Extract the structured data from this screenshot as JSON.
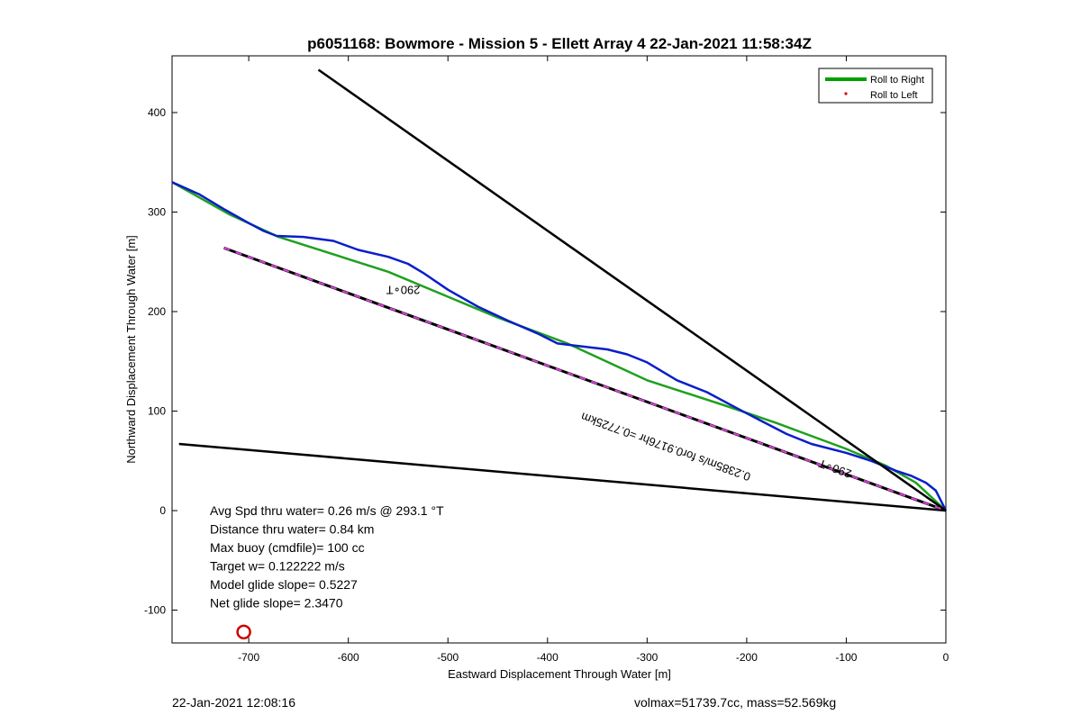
{
  "chart_data": {
    "type": "line",
    "title": "p6051168: Bowmore - Mission 5 - Ellett Array 4 22-Jan-2021 11:58:34Z",
    "xlabel": "Eastward Displacement Through Water [m]",
    "ylabel": "Northward Displacement Through Water [m]",
    "xlim": [
      -777,
      0
    ],
    "ylim": [
      -133,
      457
    ],
    "xticks": [
      -700,
      -600,
      -500,
      -400,
      -300,
      -200,
      -100,
      0
    ],
    "yticks": [
      -100,
      0,
      100,
      200,
      300,
      400
    ],
    "grid": false,
    "legend_position": "top-right",
    "legend": [
      {
        "label": "Roll to Right",
        "color": "#00a000",
        "style": "line"
      },
      {
        "label": "Roll to Left",
        "color": "#e00000",
        "style": "dot"
      }
    ],
    "series": [
      {
        "name": "Roll to Right",
        "color": "#1fa01f",
        "points": [
          [
            -777,
            330
          ],
          [
            -720,
            298
          ],
          [
            -670,
            275
          ],
          [
            -560,
            240
          ],
          [
            -450,
            194
          ],
          [
            -380,
            168
          ],
          [
            -300,
            131
          ],
          [
            -220,
            105
          ],
          [
            -170,
            88
          ],
          [
            -100,
            62
          ],
          [
            -60,
            45
          ],
          [
            -30,
            28
          ],
          [
            0,
            0
          ]
        ]
      },
      {
        "color": "#0a1ec8",
        "points": [
          [
            -777,
            330
          ],
          [
            -750,
            318
          ],
          [
            -725,
            303
          ],
          [
            -700,
            289
          ],
          [
            -685,
            281
          ],
          [
            -672,
            276
          ],
          [
            -645,
            275
          ],
          [
            -615,
            271
          ],
          [
            -590,
            262
          ],
          [
            -560,
            255
          ],
          [
            -540,
            248
          ],
          [
            -525,
            239
          ],
          [
            -500,
            222
          ],
          [
            -470,
            205
          ],
          [
            -440,
            191
          ],
          [
            -410,
            178
          ],
          [
            -390,
            168
          ],
          [
            -365,
            165
          ],
          [
            -340,
            162
          ],
          [
            -320,
            157
          ],
          [
            -300,
            149
          ],
          [
            -270,
            131
          ],
          [
            -240,
            119
          ],
          [
            -210,
            103
          ],
          [
            -185,
            90
          ],
          [
            -160,
            77
          ],
          [
            -135,
            67
          ],
          [
            -100,
            58
          ],
          [
            -75,
            50
          ],
          [
            -50,
            40
          ],
          [
            -35,
            35
          ],
          [
            -20,
            28
          ],
          [
            -10,
            20
          ],
          [
            -4,
            8
          ],
          [
            0,
            0
          ]
        ]
      },
      {
        "color": "#000000",
        "points": [
          [
            -630,
            443
          ],
          [
            0,
            0
          ]
        ]
      },
      {
        "color": "#000000",
        "points": [
          [
            -770,
            67
          ],
          [
            0,
            0
          ]
        ]
      },
      {
        "color": "#000000",
        "dashed_overlay": "#e040e0",
        "points": [
          [
            -725,
            264
          ],
          [
            0,
            0
          ]
        ]
      }
    ],
    "annotations": [
      {
        "text": "290∘T",
        "x": -545,
        "y": 226,
        "rotation": 180
      },
      {
        "text": "290∘T",
        "x": -110,
        "y": 46,
        "rotation": 200
      },
      {
        "text": "0.2385m/s for0.9176hr =0.7725km",
        "x": -280,
        "y": 68,
        "rotation": 200
      }
    ],
    "marker": {
      "shape": "circle",
      "color": "#cc0000",
      "x": -705,
      "y": -122
    },
    "stats": [
      "Avg Spd thru water=  0.26 m/s @ 293.1 °T",
      "Distance thru water=  0.84 km",
      "Max buoy (cmdfile)= 100 cc",
      "Target w= 0.122222 m/s",
      "Model glide slope= 0.5227",
      "Net glide slope= 2.3470"
    ]
  },
  "footer": {
    "timestamp": "22-Jan-2021 12:08:16",
    "summary": "volmax=51739.7cc, mass=52.569kg"
  }
}
